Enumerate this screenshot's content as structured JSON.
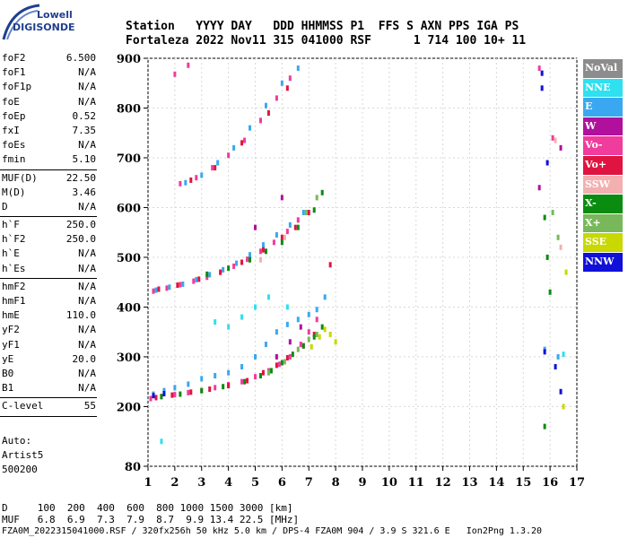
{
  "logo": {
    "brand": "Lowell",
    "product": "DIGISONDE"
  },
  "header": {
    "line1": "Station   YYYY DAY   DDD HHMMSS P1  FFS S AXN PPS IGA PS",
    "line2": "Fortaleza 2022 Nov11 315 041000 RSF      1 714 100 10+ 11"
  },
  "params": [
    {
      "label": "foF2",
      "value": "6.500"
    },
    {
      "label": "foF1",
      "value": "N/A"
    },
    {
      "label": "foF1p",
      "value": "N/A"
    },
    {
      "label": "foE",
      "value": "N/A"
    },
    {
      "label": "foEp",
      "value": "0.52"
    },
    {
      "label": "fxI",
      "value": "7.35"
    },
    {
      "label": "foEs",
      "value": "N/A"
    },
    {
      "label": "fmin",
      "value": "5.10"
    },
    {
      "sep": true
    },
    {
      "label": "MUF(D)",
      "value": "22.50"
    },
    {
      "label": "M(D)",
      "value": "3.46"
    },
    {
      "label": "D",
      "value": "N/A"
    },
    {
      "sep": true
    },
    {
      "label": "h`F",
      "value": "250.0"
    },
    {
      "label": "h`F2",
      "value": "250.0"
    },
    {
      "label": "h`E",
      "value": "N/A"
    },
    {
      "label": "h`Es",
      "value": "N/A"
    },
    {
      "sep": true
    },
    {
      "label": "hmF2",
      "value": "N/A"
    },
    {
      "label": "hmF1",
      "value": "N/A"
    },
    {
      "label": "hmE",
      "value": "110.0"
    },
    {
      "label": "yF2",
      "value": "N/A"
    },
    {
      "label": "yF1",
      "value": "N/A"
    },
    {
      "label": "yE",
      "value": "20.0"
    },
    {
      "label": "B0",
      "value": "N/A"
    },
    {
      "label": "B1",
      "value": "N/A"
    },
    {
      "sep": true
    },
    {
      "label": "C-level",
      "value": "55"
    },
    {
      "sep": true
    }
  ],
  "auto": {
    "line1": "Auto:",
    "line2": "Artist5",
    "line3": "500200"
  },
  "legend": [
    {
      "label": "NoVal",
      "color": "#8c8c8c"
    },
    {
      "label": "NNE",
      "color": "#2ee0f0"
    },
    {
      "label": "E",
      "color": "#3aa8f0"
    },
    {
      "label": "W",
      "color": "#b0109c"
    },
    {
      "label": "Vo-",
      "color": "#f03c9c"
    },
    {
      "label": "Vo+",
      "color": "#e01440"
    },
    {
      "label": "SSW",
      "color": "#f4b0b0"
    },
    {
      "label": "X-",
      "color": "#0a8c10"
    },
    {
      "label": "X+",
      "color": "#78b85a"
    },
    {
      "label": "SSE",
      "color": "#c8d800"
    },
    {
      "label": "NNW",
      "color": "#1010d8"
    }
  ],
  "chart_data": {
    "type": "scatter",
    "xlim": [
      1,
      17
    ],
    "ylim": [
      80,
      900
    ],
    "xticks": [
      1,
      2,
      3,
      4,
      5,
      6,
      7,
      8,
      9,
      10,
      11,
      12,
      13,
      14,
      15,
      16,
      17
    ],
    "yticks": [
      80,
      200,
      300,
      400,
      500,
      600,
      700,
      800,
      900
    ],
    "grid": true,
    "series": [
      {
        "name": "E",
        "color": "#3aa8f0",
        "points": [
          [
            1.2,
            225
          ],
          [
            1.6,
            232
          ],
          [
            2.0,
            238
          ],
          [
            2.5,
            245
          ],
          [
            3.0,
            256
          ],
          [
            3.5,
            262
          ],
          [
            4.0,
            268
          ],
          [
            4.5,
            280
          ],
          [
            5.0,
            300
          ],
          [
            5.4,
            325
          ],
          [
            5.8,
            350
          ],
          [
            6.2,
            365
          ],
          [
            6.6,
            375
          ],
          [
            7.0,
            385
          ],
          [
            7.3,
            395
          ],
          [
            7.6,
            420
          ],
          [
            1.3,
            434
          ],
          [
            1.8,
            440
          ],
          [
            2.3,
            446
          ],
          [
            2.8,
            455
          ],
          [
            3.3,
            465
          ],
          [
            3.8,
            475
          ],
          [
            4.3,
            488
          ],
          [
            4.8,
            505
          ],
          [
            5.3,
            525
          ],
          [
            5.8,
            545
          ],
          [
            6.3,
            565
          ],
          [
            6.8,
            590
          ],
          [
            2.4,
            650
          ],
          [
            3.0,
            665
          ],
          [
            3.6,
            690
          ],
          [
            4.2,
            720
          ],
          [
            4.8,
            760
          ],
          [
            5.4,
            805
          ],
          [
            6.0,
            850
          ],
          [
            6.6,
            880
          ],
          [
            15.8,
            315
          ],
          [
            16.3,
            300
          ]
        ]
      },
      {
        "name": "Vo-",
        "color": "#f03c9c",
        "points": [
          [
            1.1,
            216
          ],
          [
            1.5,
            220
          ],
          [
            2.0,
            224
          ],
          [
            2.5,
            228
          ],
          [
            3.0,
            232
          ],
          [
            3.5,
            238
          ],
          [
            4.0,
            244
          ],
          [
            4.5,
            250
          ],
          [
            5.0,
            260
          ],
          [
            5.5,
            272
          ],
          [
            5.9,
            285
          ],
          [
            6.3,
            300
          ],
          [
            6.7,
            325
          ],
          [
            7.0,
            350
          ],
          [
            7.3,
            375
          ],
          [
            1.2,
            432
          ],
          [
            1.7,
            438
          ],
          [
            2.2,
            445
          ],
          [
            2.7,
            452
          ],
          [
            3.2,
            460
          ],
          [
            3.7,
            470
          ],
          [
            4.2,
            482
          ],
          [
            4.7,
            496
          ],
          [
            5.2,
            512
          ],
          [
            5.7,
            530
          ],
          [
            6.2,
            552
          ],
          [
            6.6,
            575
          ],
          [
            2.2,
            648
          ],
          [
            2.8,
            660
          ],
          [
            3.4,
            680
          ],
          [
            4.0,
            705
          ],
          [
            4.6,
            735
          ],
          [
            5.2,
            775
          ],
          [
            5.8,
            820
          ],
          [
            6.3,
            860
          ],
          [
            2.0,
            868
          ],
          [
            2.5,
            886
          ],
          [
            16.1,
            740
          ],
          [
            15.6,
            880
          ]
        ]
      },
      {
        "name": "Vo+",
        "color": "#e01440",
        "points": [
          [
            1.3,
            218
          ],
          [
            1.9,
            223
          ],
          [
            2.6,
            229
          ],
          [
            3.3,
            235
          ],
          [
            4.0,
            242
          ],
          [
            4.7,
            252
          ],
          [
            5.3,
            268
          ],
          [
            5.8,
            283
          ],
          [
            6.2,
            298
          ],
          [
            6.8,
            322
          ],
          [
            7.2,
            345
          ],
          [
            1.4,
            436
          ],
          [
            2.1,
            444
          ],
          [
            2.9,
            456
          ],
          [
            3.7,
            470
          ],
          [
            4.5,
            490
          ],
          [
            5.3,
            515
          ],
          [
            6.0,
            540
          ],
          [
            6.5,
            560
          ],
          [
            7.0,
            590
          ],
          [
            2.6,
            655
          ],
          [
            3.5,
            680
          ],
          [
            4.5,
            730
          ],
          [
            5.5,
            790
          ],
          [
            6.2,
            840
          ],
          [
            7.8,
            485
          ]
        ]
      },
      {
        "name": "X-",
        "color": "#0a8c10",
        "points": [
          [
            1.5,
            220
          ],
          [
            2.2,
            225
          ],
          [
            3.0,
            232
          ],
          [
            3.8,
            240
          ],
          [
            4.6,
            250
          ],
          [
            5.2,
            262
          ],
          [
            5.6,
            272
          ],
          [
            6.0,
            288
          ],
          [
            6.4,
            305
          ],
          [
            6.8,
            322
          ],
          [
            7.2,
            340
          ],
          [
            7.5,
            360
          ],
          [
            3.2,
            466
          ],
          [
            4.0,
            478
          ],
          [
            4.8,
            495
          ],
          [
            5.4,
            512
          ],
          [
            6.0,
            530
          ],
          [
            6.6,
            560
          ],
          [
            7.2,
            595
          ],
          [
            7.5,
            630
          ],
          [
            15.8,
            580
          ],
          [
            15.9,
            500
          ],
          [
            16.0,
            430
          ],
          [
            15.8,
            160
          ]
        ]
      },
      {
        "name": "X+",
        "color": "#78b85a",
        "points": [
          [
            5.5,
            268
          ],
          [
            6.1,
            290
          ],
          [
            6.6,
            315
          ],
          [
            7.0,
            335
          ],
          [
            7.3,
            345
          ],
          [
            6.9,
            590
          ],
          [
            7.3,
            620
          ],
          [
            16.1,
            590
          ],
          [
            16.3,
            540
          ]
        ]
      },
      {
        "name": "SSE",
        "color": "#c8d800",
        "points": [
          [
            7.1,
            320
          ],
          [
            7.4,
            340
          ],
          [
            7.6,
            355
          ],
          [
            7.8,
            345
          ],
          [
            8.0,
            330
          ],
          [
            16.5,
            200
          ],
          [
            16.6,
            470
          ]
        ]
      },
      {
        "name": "NNE",
        "color": "#2ee0f0",
        "points": [
          [
            3.5,
            370
          ],
          [
            4.0,
            360
          ],
          [
            4.5,
            380
          ],
          [
            5.0,
            400
          ],
          [
            5.5,
            420
          ],
          [
            6.2,
            400
          ],
          [
            1.5,
            130
          ],
          [
            16.5,
            305
          ]
        ]
      },
      {
        "name": "W",
        "color": "#b0109c",
        "points": [
          [
            5.8,
            300
          ],
          [
            6.3,
            330
          ],
          [
            6.7,
            360
          ],
          [
            5.0,
            560
          ],
          [
            6.0,
            620
          ],
          [
            15.6,
            640
          ],
          [
            16.4,
            720
          ]
        ]
      },
      {
        "name": "NNW",
        "color": "#1010d8",
        "points": [
          [
            1.2,
            222
          ],
          [
            1.6,
            226
          ],
          [
            15.7,
            870
          ],
          [
            15.7,
            840
          ],
          [
            15.9,
            690
          ],
          [
            16.2,
            280
          ],
          [
            16.4,
            230
          ],
          [
            15.8,
            310
          ]
        ]
      },
      {
        "name": "SSW",
        "color": "#f4b0b0",
        "points": [
          [
            5.2,
            495
          ],
          [
            6.1,
            540
          ],
          [
            16.2,
            735
          ],
          [
            16.4,
            520
          ]
        ]
      }
    ]
  },
  "footer": {
    "dist": "D     100  200  400  600  800 1000 1500 3000 [km]",
    "muf": "MUF   6.8  6.9  7.3  7.9  8.7  9.9 13.4 22.5 [MHz]",
    "info": "FZA0M_2022315041000.RSF / 320fx256h 50 kHz 5.0 km / DPS-4 FZA0M 904 / 3.9 S 321.6 E   Ion2Png 1.3.20"
  }
}
